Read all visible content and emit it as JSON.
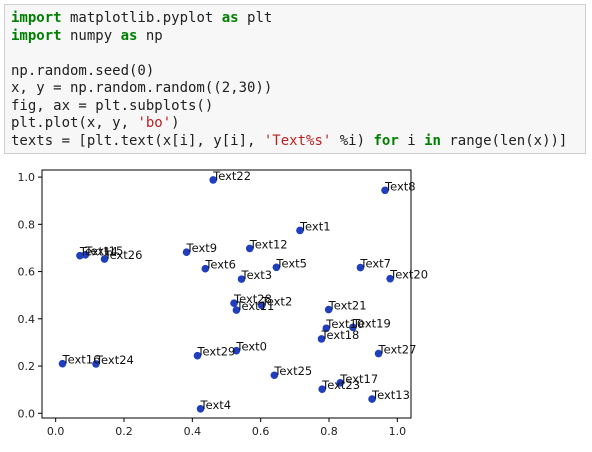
{
  "code_cell": {
    "lines": [
      [
        {
          "t": "import",
          "c": "kw"
        },
        {
          "t": " matplotlib.pyplot "
        },
        {
          "t": "as",
          "c": "kw"
        },
        {
          "t": " plt"
        }
      ],
      [
        {
          "t": "import",
          "c": "kw"
        },
        {
          "t": " numpy "
        },
        {
          "t": "as",
          "c": "kw"
        },
        {
          "t": " np"
        }
      ],
      [],
      [
        {
          "t": "np.random.seed(0)"
        }
      ],
      [
        {
          "t": "x, y = np.random.random((2,30))"
        }
      ],
      [
        {
          "t": "fig, ax = plt.subplots()"
        }
      ],
      [
        {
          "t": "plt.plot(x, y, "
        },
        {
          "t": "'bo'",
          "c": "str"
        },
        {
          "t": ")"
        }
      ],
      [
        {
          "t": "texts = [plt.text(x[i], y[i], "
        },
        {
          "t": "'Text%s'",
          "c": "str"
        },
        {
          "t": " %i) "
        },
        {
          "t": "for",
          "c": "kw"
        },
        {
          "t": " i "
        },
        {
          "t": "in",
          "c": "kw"
        },
        {
          "t": " range(len(x))]"
        }
      ]
    ]
  },
  "chart_data": {
    "type": "scatter",
    "title": "",
    "xlabel": "",
    "ylabel": "",
    "xlim": [
      -0.04,
      1.04
    ],
    "ylim": [
      -0.02,
      1.03
    ],
    "xticks": [
      "0.0",
      "0.2",
      "0.4",
      "0.6",
      "0.8",
      "1.0"
    ],
    "yticks": [
      "0.0",
      "0.2",
      "0.4",
      "0.6",
      "0.8",
      "1.0"
    ],
    "xtick_values": [
      0.0,
      0.2,
      0.4,
      0.6,
      0.8,
      1.0
    ],
    "ytick_values": [
      0.0,
      0.2,
      0.4,
      0.6,
      0.8,
      1.0
    ],
    "marker_color": "#1f3fbf",
    "points": [
      {
        "label": "Text0",
        "x": 0.529,
        "y": 0.265
      },
      {
        "label": "Text1",
        "x": 0.715,
        "y": 0.774
      },
      {
        "label": "Text2",
        "x": 0.603,
        "y": 0.457
      },
      {
        "label": "Text3",
        "x": 0.544,
        "y": 0.568
      },
      {
        "label": "Text4",
        "x": 0.424,
        "y": 0.019
      },
      {
        "label": "Text5",
        "x": 0.646,
        "y": 0.618
      },
      {
        "label": "Text6",
        "x": 0.438,
        "y": 0.612
      },
      {
        "label": "Text7",
        "x": 0.892,
        "y": 0.617
      },
      {
        "label": "Text8",
        "x": 0.964,
        "y": 0.944
      },
      {
        "label": "Text9",
        "x": 0.383,
        "y": 0.682
      },
      {
        "label": "Text10",
        "x": 0.792,
        "y": 0.36
      },
      {
        "label": "Text11",
        "x": 0.529,
        "y": 0.437
      },
      {
        "label": "Text12",
        "x": 0.568,
        "y": 0.698
      },
      {
        "label": "Text13",
        "x": 0.926,
        "y": 0.06
      },
      {
        "label": "Text14",
        "x": 0.071,
        "y": 0.667
      },
      {
        "label": "Text15",
        "x": 0.087,
        "y": 0.671
      },
      {
        "label": "Text16",
        "x": 0.02,
        "y": 0.21
      },
      {
        "label": "Text17",
        "x": 0.833,
        "y": 0.129
      },
      {
        "label": "Text18",
        "x": 0.778,
        "y": 0.315
      },
      {
        "label": "Text19",
        "x": 0.87,
        "y": 0.364
      },
      {
        "label": "Text20",
        "x": 0.979,
        "y": 0.57
      },
      {
        "label": "Text21",
        "x": 0.799,
        "y": 0.439
      },
      {
        "label": "Text22",
        "x": 0.461,
        "y": 0.988
      },
      {
        "label": "Text23",
        "x": 0.78,
        "y": 0.102
      },
      {
        "label": "Text24",
        "x": 0.118,
        "y": 0.209
      },
      {
        "label": "Text25",
        "x": 0.64,
        "y": 0.161
      },
      {
        "label": "Text26",
        "x": 0.143,
        "y": 0.653
      },
      {
        "label": "Text27",
        "x": 0.945,
        "y": 0.253
      },
      {
        "label": "Text28",
        "x": 0.522,
        "y": 0.466
      },
      {
        "label": "Text29",
        "x": 0.415,
        "y": 0.244
      }
    ]
  }
}
